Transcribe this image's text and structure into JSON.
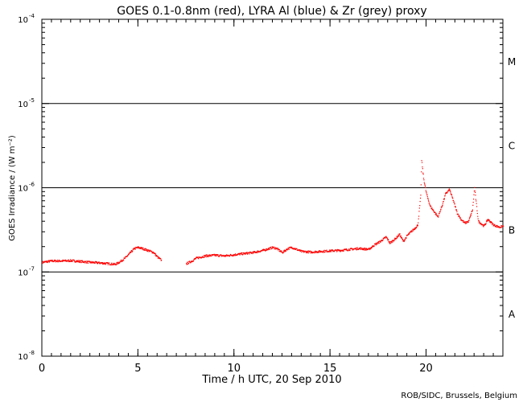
{
  "chart_data": {
    "type": "scatter",
    "title": "GOES 0.1-0.8nm (red), LYRA Al (blue) & Zr (grey) proxy",
    "xlabel": "Time / h UTC, 20 Sep 2010",
    "ylabel": "GOES Irradiance / (W m⁻²)",
    "credit": "ROB/SIDC, Brussels, Belgium",
    "x_scale": "linear",
    "y_scale": "log",
    "xlim": [
      0,
      24
    ],
    "ylim": [
      1e-08,
      0.0001
    ],
    "x_ticks": [
      {
        "value": 0,
        "label": "0"
      },
      {
        "value": 5,
        "label": "5"
      },
      {
        "value": 10,
        "label": "10"
      },
      {
        "value": 15,
        "label": "15"
      },
      {
        "value": 20,
        "label": "20"
      }
    ],
    "y_ticks": [
      {
        "value": 1e-08,
        "base": "10",
        "exp": "-8"
      },
      {
        "value": 1e-07,
        "base": "10",
        "exp": "-7"
      },
      {
        "value": 1e-06,
        "base": "10",
        "exp": "-6"
      },
      {
        "value": 1e-05,
        "base": "10",
        "exp": "-5"
      },
      {
        "value": 0.0001,
        "base": "10",
        "exp": "-4"
      }
    ],
    "class_lines": [
      1e-07,
      1e-06,
      1e-05
    ],
    "class_labels": [
      {
        "label": "A",
        "value": 3.2e-08
      },
      {
        "label": "B",
        "value": 3.2e-07
      },
      {
        "label": "C",
        "value": 3.2e-06
      },
      {
        "label": "M",
        "value": 3.2e-05
      }
    ],
    "series": [
      {
        "color": "#ff0000",
        "segments": [
          {
            "x": [
              0.0,
              0.5,
              1.0,
              1.5,
              2.0,
              2.5,
              3.0,
              3.5,
              3.8,
              4.0,
              4.3,
              4.6,
              4.8,
              5.0,
              5.2,
              5.5,
              5.8,
              6.0,
              6.2
            ],
            "y": [
              1.3e-07,
              1.35e-07,
              1.35e-07,
              1.36e-07,
              1.33e-07,
              1.3e-07,
              1.28e-07,
              1.25e-07,
              1.23e-07,
              1.3e-07,
              1.45e-07,
              1.7e-07,
              1.9e-07,
              1.95e-07,
              1.9e-07,
              1.8e-07,
              1.7e-07,
              1.5e-07,
              1.38e-07
            ]
          },
          {
            "x": [
              7.5,
              7.8,
              8.0,
              8.5,
              9.0,
              9.5,
              10.0,
              10.5,
              11.0,
              11.5,
              12.0,
              12.2,
              12.5,
              12.8,
              13.0,
              13.5,
              14.0,
              14.5,
              15.0,
              15.5,
              16.0,
              16.5,
              17.0,
              17.3,
              17.6,
              17.9,
              18.1,
              18.4,
              18.6,
              18.8,
              19.0,
              19.2,
              19.4,
              19.55,
              19.7,
              19.75,
              19.85,
              20.0,
              20.2,
              20.4,
              20.6,
              20.8,
              21.0,
              21.2,
              21.4,
              21.6,
              21.8,
              22.0,
              22.2,
              22.4,
              22.5,
              22.7,
              23.0,
              23.2,
              23.5,
              23.8,
              24.0
            ],
            "y": [
              1.25e-07,
              1.35e-07,
              1.45e-07,
              1.55e-07,
              1.58e-07,
              1.55e-07,
              1.6e-07,
              1.65e-07,
              1.7e-07,
              1.8e-07,
              1.95e-07,
              1.9e-07,
              1.7e-07,
              1.9e-07,
              1.95e-07,
              1.75e-07,
              1.72e-07,
              1.75e-07,
              1.78e-07,
              1.8e-07,
              1.85e-07,
              1.9e-07,
              1.85e-07,
              2.1e-07,
              2.3e-07,
              2.6e-07,
              2.2e-07,
              2.5e-07,
              2.8e-07,
              2.3e-07,
              2.7e-07,
              3e-07,
              3.3e-07,
              3.6e-07,
              8e-07,
              2.1e-06,
              1.3e-06,
              8.5e-07,
              6e-07,
              5.2e-07,
              4.5e-07,
              6e-07,
              8.5e-07,
              9.5e-07,
              7e-07,
              5e-07,
              4.2e-07,
              3.8e-07,
              4e-07,
              5.5e-07,
              1e-06,
              4e-07,
              3.5e-07,
              4.2e-07,
              3.6e-07,
              3.4e-07,
              3.5e-07
            ]
          }
        ]
      }
    ]
  }
}
